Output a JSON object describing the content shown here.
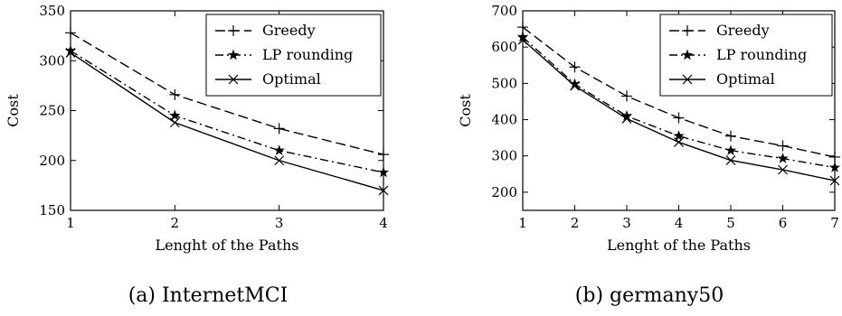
{
  "chart_data": [
    {
      "type": "line",
      "caption": "(a) InternetMCI",
      "xlabel": "Lenght of the Paths",
      "ylabel": "Cost",
      "x": [
        1,
        2,
        3,
        4
      ],
      "xlim": [
        1,
        4
      ],
      "ylim": [
        150,
        350
      ],
      "xticks": [
        "1",
        "2",
        "3",
        "4"
      ],
      "yticks": [
        "150",
        "200",
        "250",
        "300",
        "350"
      ],
      "grid": false,
      "legend": "top-right",
      "series": [
        {
          "name": "Greedy",
          "values": [
            328,
            266,
            232,
            206
          ],
          "linestyle": "dashed",
          "marker": "+"
        },
        {
          "name": "LP rounding",
          "values": [
            310,
            245,
            210,
            188
          ],
          "linestyle": "dashdot",
          "marker": "*"
        },
        {
          "name": "Optimal",
          "values": [
            308,
            238,
            200,
            170
          ],
          "linestyle": "solid",
          "marker": "x"
        }
      ]
    },
    {
      "type": "line",
      "caption": "(b) germany50",
      "xlabel": "Lenght of the Paths",
      "ylabel": "Cost",
      "x": [
        1,
        2,
        3,
        4,
        5,
        6,
        7
      ],
      "xlim": [
        1,
        7
      ],
      "ylim": [
        150,
        700
      ],
      "xticks": [
        "1",
        "2",
        "3",
        "4",
        "5",
        "6",
        "7"
      ],
      "yticks": [
        "200",
        "300",
        "400",
        "500",
        "600",
        "700"
      ],
      "grid": false,
      "legend": "top-right",
      "series": [
        {
          "name": "Greedy",
          "values": [
            655,
            545,
            465,
            405,
            355,
            328,
            297
          ],
          "linestyle": "dashed",
          "marker": "+"
        },
        {
          "name": "LP rounding",
          "values": [
            628,
            498,
            410,
            355,
            315,
            293,
            268
          ],
          "linestyle": "dashdot",
          "marker": "*"
        },
        {
          "name": "Optimal",
          "values": [
            620,
            493,
            403,
            338,
            288,
            262,
            232
          ],
          "linestyle": "solid",
          "marker": "x"
        }
      ]
    }
  ]
}
